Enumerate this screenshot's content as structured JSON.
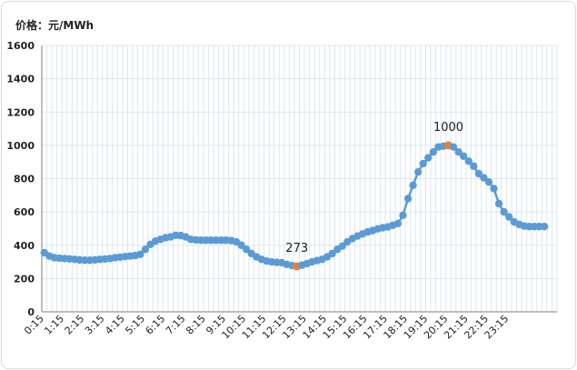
{
  "unit_label": "价格：元/MWh",
  "colors": {
    "line": "#5b9bd5",
    "highlight": "#ed7d31",
    "grid": "#dce6f1"
  },
  "chart_data": {
    "type": "line",
    "title": "",
    "xlabel": "",
    "ylabel": "价格：元/MWh",
    "ylim": [
      0,
      1600
    ],
    "yticks": [
      0,
      200,
      400,
      600,
      800,
      1000,
      1200,
      1400,
      1600
    ],
    "grid": true,
    "legend": "none",
    "x_tick_labels": [
      "0:15",
      "1:15",
      "2:15",
      "3:15",
      "4:15",
      "5:15",
      "6:15",
      "7:15",
      "8:15",
      "9:15",
      "10:15",
      "11:15",
      "12:15",
      "13:15",
      "14:15",
      "15:15",
      "16:15",
      "17:15",
      "18:15",
      "19:15",
      "20:15",
      "21:15",
      "22:15",
      "23:15"
    ],
    "series": [
      {
        "values": [
          355,
          335,
          325,
          322,
          320,
          318,
          315,
          312,
          310,
          310,
          312,
          315,
          317,
          320,
          325,
          328,
          332,
          335,
          338,
          345,
          375,
          405,
          425,
          435,
          445,
          450,
          460,
          458,
          450,
          435,
          432,
          430,
          430,
          430,
          430,
          430,
          430,
          428,
          420,
          400,
          375,
          350,
          330,
          315,
          305,
          300,
          297,
          295,
          285,
          278,
          273,
          280,
          290,
          300,
          308,
          315,
          330,
          350,
          375,
          395,
          420,
          440,
          455,
          468,
          480,
          488,
          498,
          505,
          510,
          520,
          530,
          580,
          680,
          760,
          840,
          890,
          925,
          960,
          990,
          995,
          1000,
          990,
          960,
          935,
          905,
          875,
          830,
          805,
          780,
          740,
          650,
          600,
          570,
          540,
          525,
          515,
          512,
          512,
          512,
          512
        ]
      }
    ],
    "annotations": [
      {
        "label": "273",
        "index": 50,
        "value": 273
      },
      {
        "label": "1000",
        "index": 80,
        "value": 1000
      }
    ]
  }
}
